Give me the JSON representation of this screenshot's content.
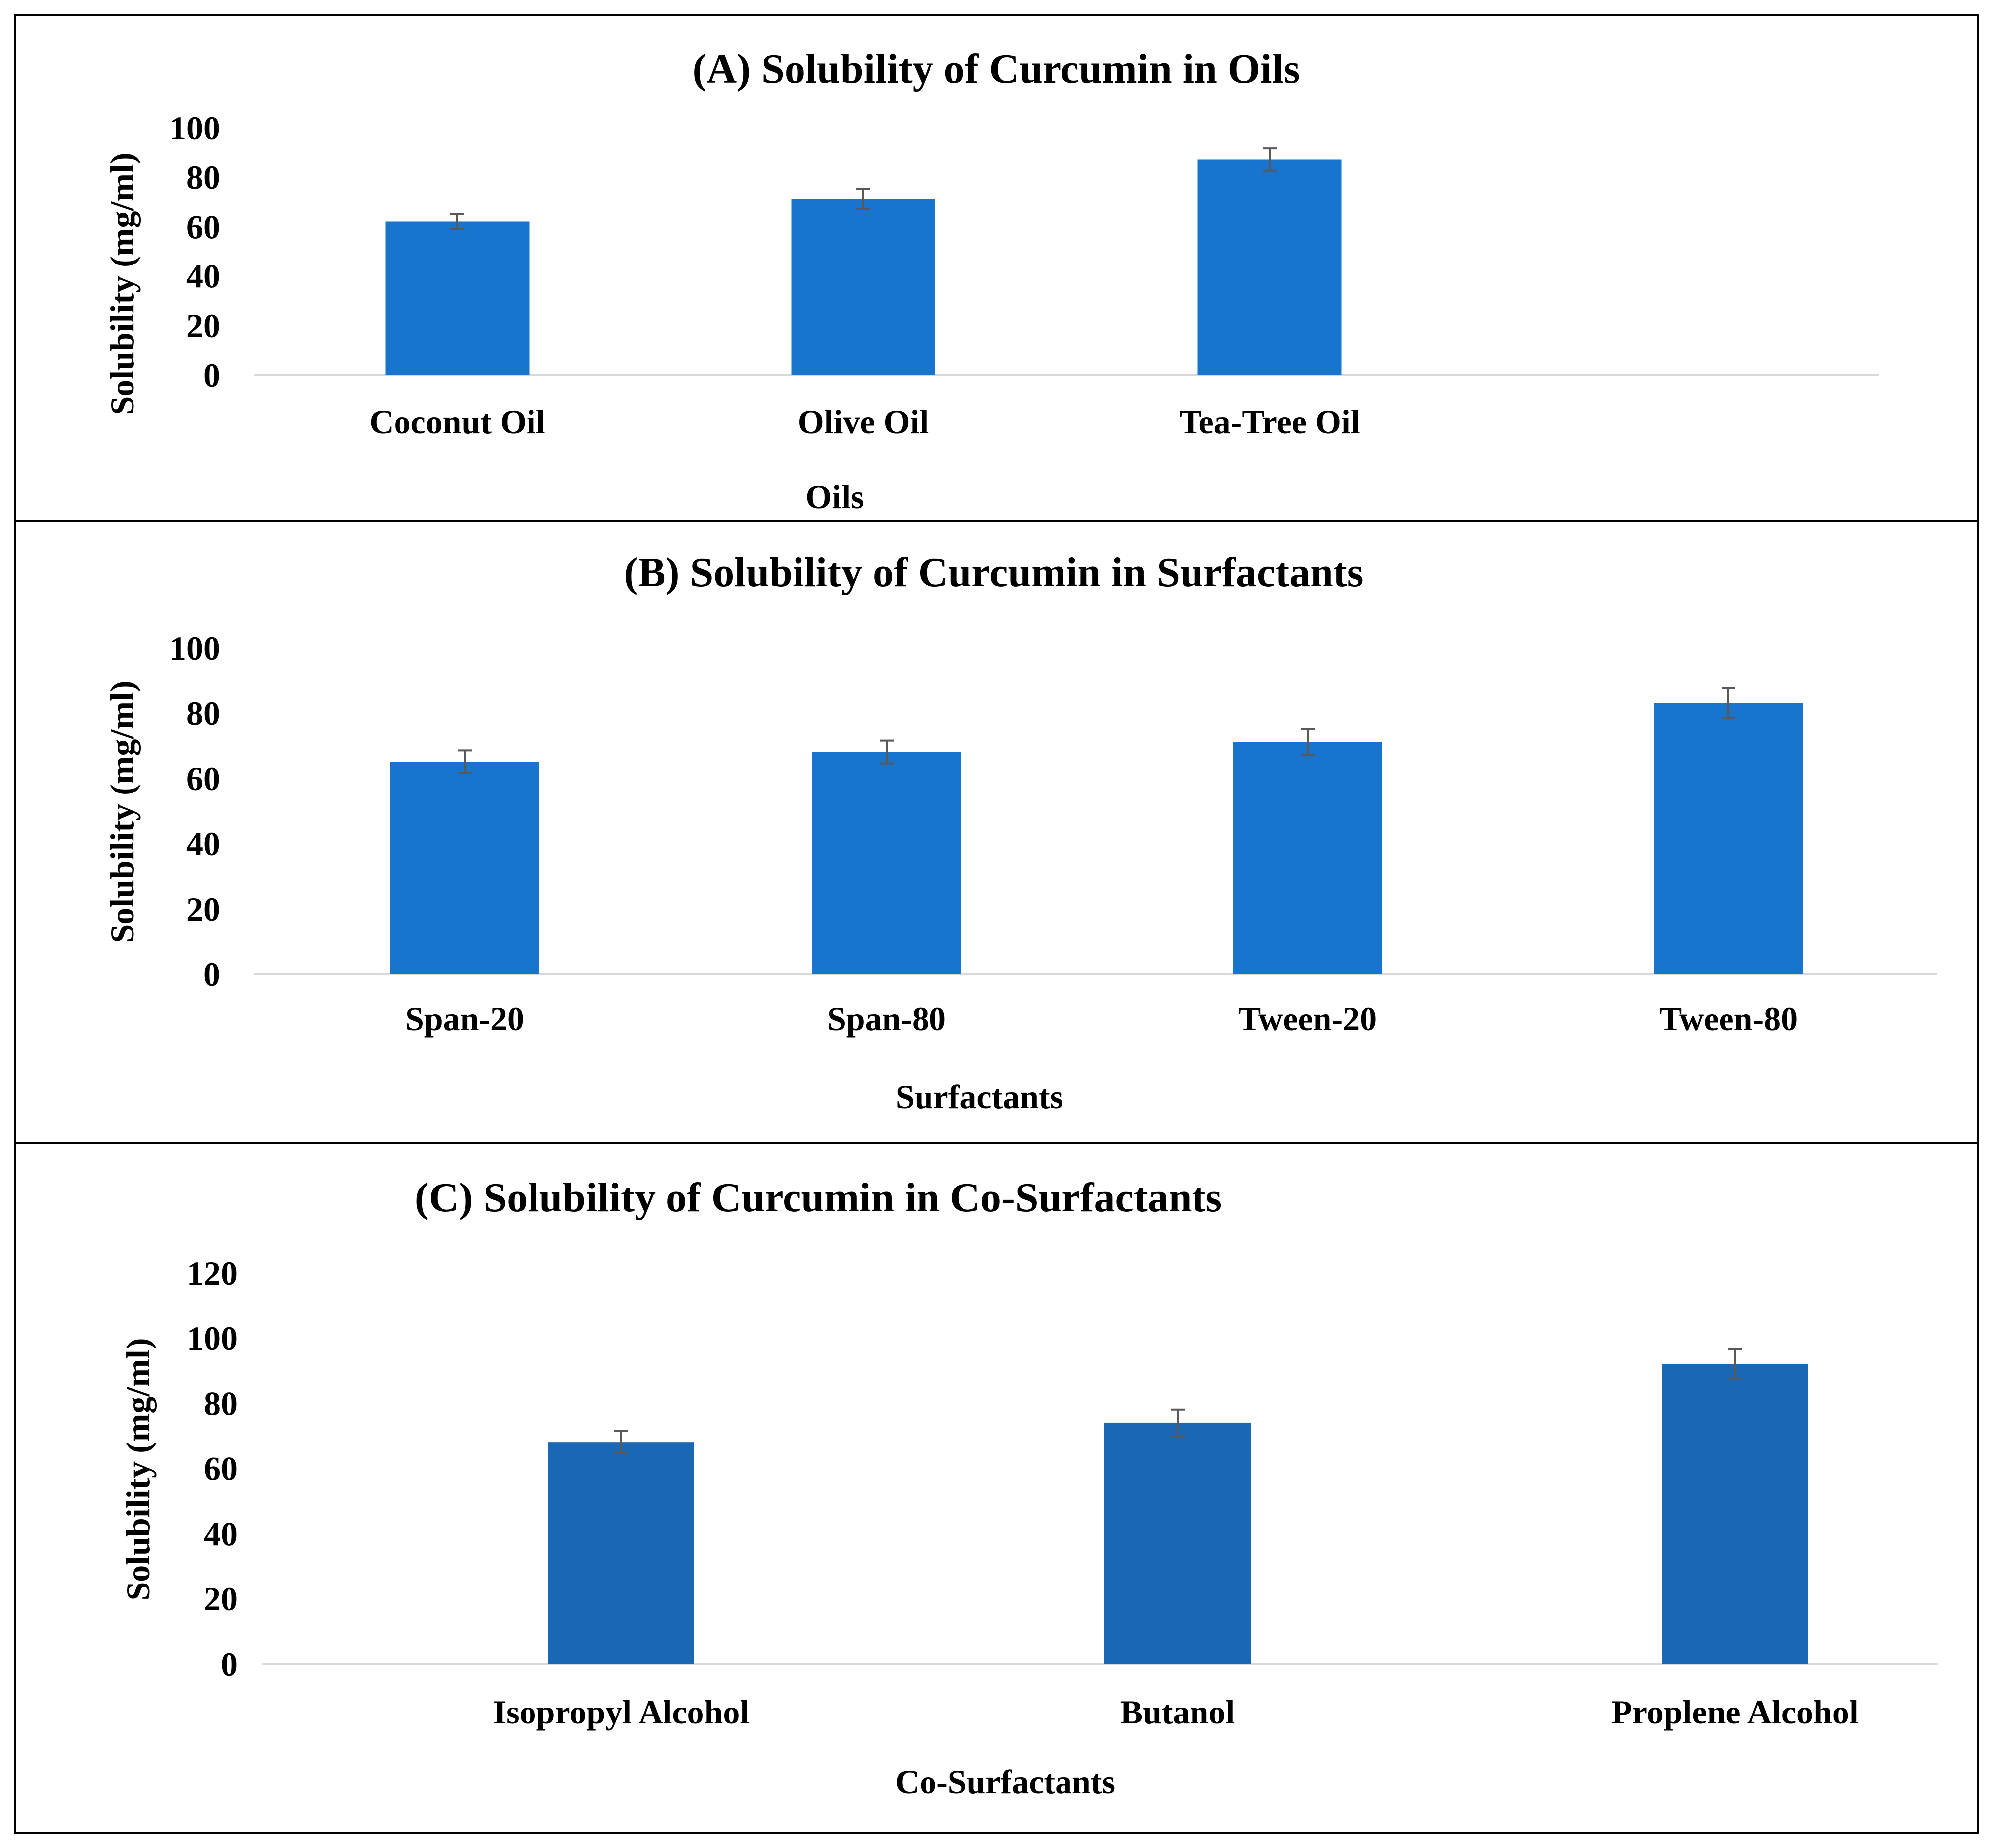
{
  "colors": {
    "bar_ab": "#1874CD",
    "bar_c": "#1A67B5",
    "error_bar": "#595959",
    "axis_line": "#D9D9D9",
    "frame": "#000000"
  },
  "chart_data": [
    {
      "type": "bar",
      "title": "(A) Solubility of Curcumin in Oils",
      "xlabel": "Oils",
      "ylabel": "Solubility (mg/ml)",
      "ylim": [
        0,
        100
      ],
      "yticks": [
        0,
        20,
        40,
        60,
        80,
        100
      ],
      "yticks_text": [
        "0",
        "20",
        "40",
        "60",
        "80",
        "100"
      ],
      "categories": [
        "Coconut Oil",
        "Olive Oil",
        "Tea-Tree Oil"
      ],
      "values": [
        62,
        71,
        87
      ],
      "errors": [
        3,
        4,
        4.5
      ],
      "grid": false,
      "legend": "none"
    },
    {
      "type": "bar",
      "title": "(B) Solubility of Curcumin in Surfactants",
      "xlabel": "Surfactants",
      "ylabel": "Solubility  (mg/ml)",
      "ylim": [
        0,
        100
      ],
      "yticks": [
        0,
        20,
        40,
        60,
        80,
        100
      ],
      "yticks_text": [
        "0",
        "20",
        "40",
        "60",
        "80",
        "100"
      ],
      "categories": [
        "Span-20",
        "Span-80",
        "Tween-20",
        "Tween-80"
      ],
      "values": [
        65,
        68,
        71,
        83
      ],
      "errors": [
        3.5,
        3.5,
        4,
        4.5
      ],
      "grid": false,
      "legend": "none"
    },
    {
      "type": "bar",
      "title": "(C) Solubility of Curcumin in Co-Surfactants",
      "xlabel": "Co-Surfactants",
      "ylabel": "Solubility  (mg/ml)",
      "ylim": [
        0,
        120
      ],
      "yticks": [
        0,
        20,
        40,
        60,
        80,
        100,
        120
      ],
      "yticks_text": [
        "0",
        "20",
        "40",
        "60",
        "80",
        "100",
        "120"
      ],
      "categories": [
        "Isopropyl Alcohol",
        "Butanol",
        "Proplene  Alcohol"
      ],
      "values": [
        68,
        74,
        92
      ],
      "errors": [
        3.5,
        4,
        4.5
      ],
      "grid": false,
      "legend": "none"
    }
  ]
}
